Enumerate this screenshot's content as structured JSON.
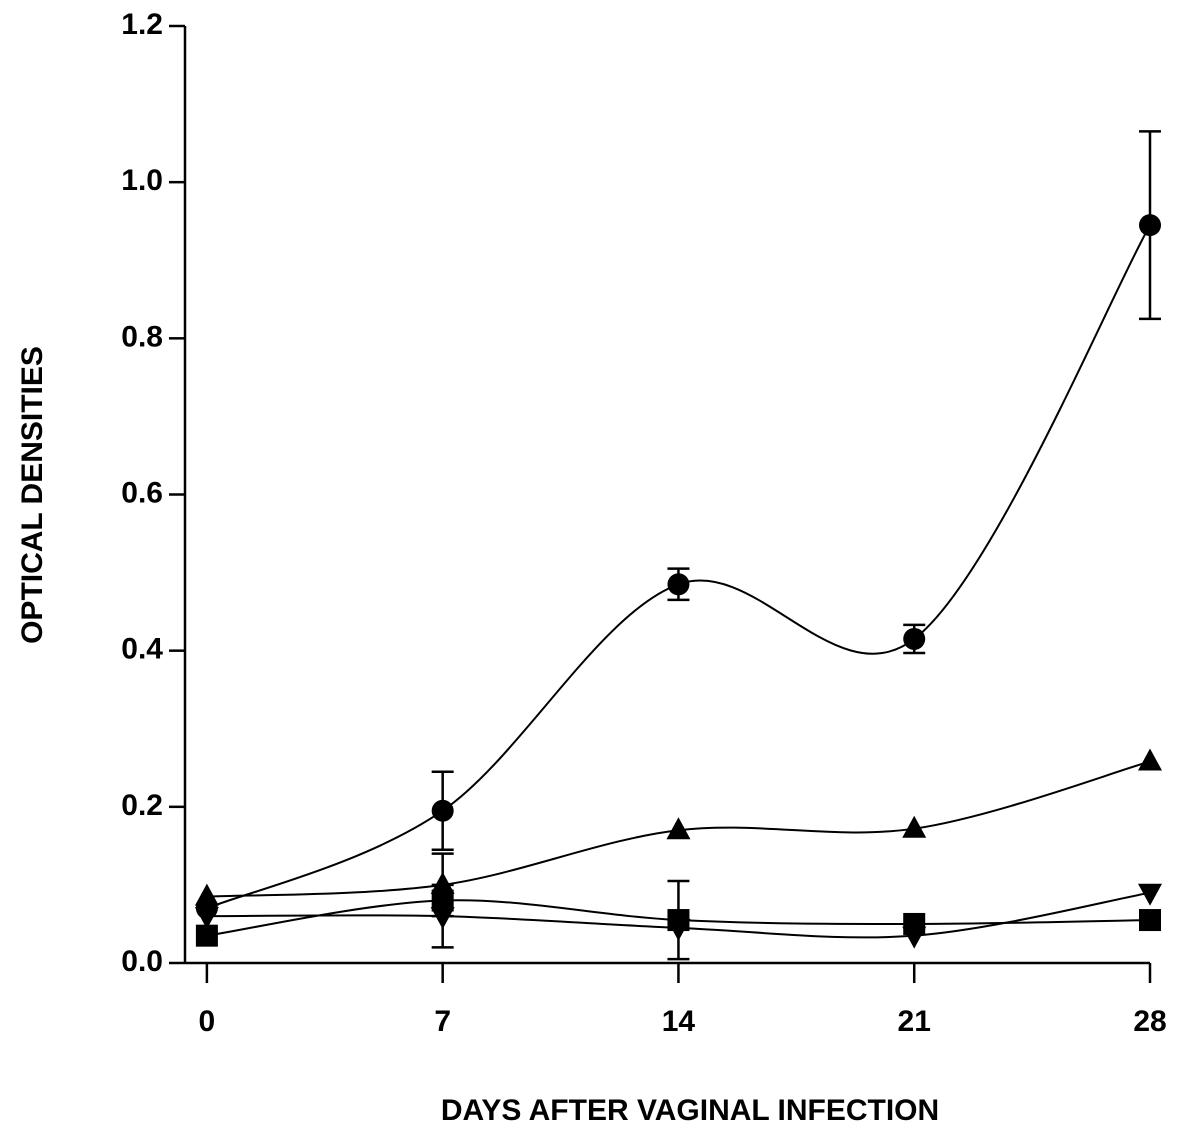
{
  "chart_data": {
    "type": "line",
    "xlabel": "DAYS AFTER VAGINAL INFECTION",
    "ylabel": "OPTICAL DENSITIES",
    "x": [
      0,
      7,
      14,
      21,
      28
    ],
    "series": [
      {
        "marker": "circle",
        "color": "#000000",
        "values": [
          0.07,
          0.195,
          0.485,
          0.415,
          0.945
        ],
        "errors": [
          null,
          0.05,
          0.02,
          0.018,
          0.12
        ]
      },
      {
        "marker": "triangle",
        "color": "#000000",
        "values": [
          0.085,
          0.1,
          0.17,
          0.172,
          0.258
        ],
        "errors": [
          null,
          0.04,
          null,
          null,
          null
        ]
      },
      {
        "marker": "triangle-down",
        "color": "#000000",
        "values": [
          0.06,
          0.06,
          0.045,
          0.035,
          0.09
        ],
        "errors": [
          null,
          0.04,
          null,
          null,
          null
        ]
      },
      {
        "marker": "square",
        "color": "#000000",
        "values": [
          0.035,
          0.08,
          0.055,
          0.05,
          0.055
        ],
        "errors": [
          null,
          null,
          0.05,
          null,
          null
        ]
      }
    ],
    "xlim": [
      -0.65,
      28
    ],
    "ylim": [
      0,
      1.2
    ],
    "xticks": [
      0,
      7,
      14,
      21,
      28
    ],
    "yticks": [
      {
        "value": 0,
        "label": "0.0"
      },
      0.2,
      0.4,
      0.6,
      0.8,
      {
        "value": 1,
        "label": "1.0"
      },
      1.2
    ],
    "grid": false
  }
}
